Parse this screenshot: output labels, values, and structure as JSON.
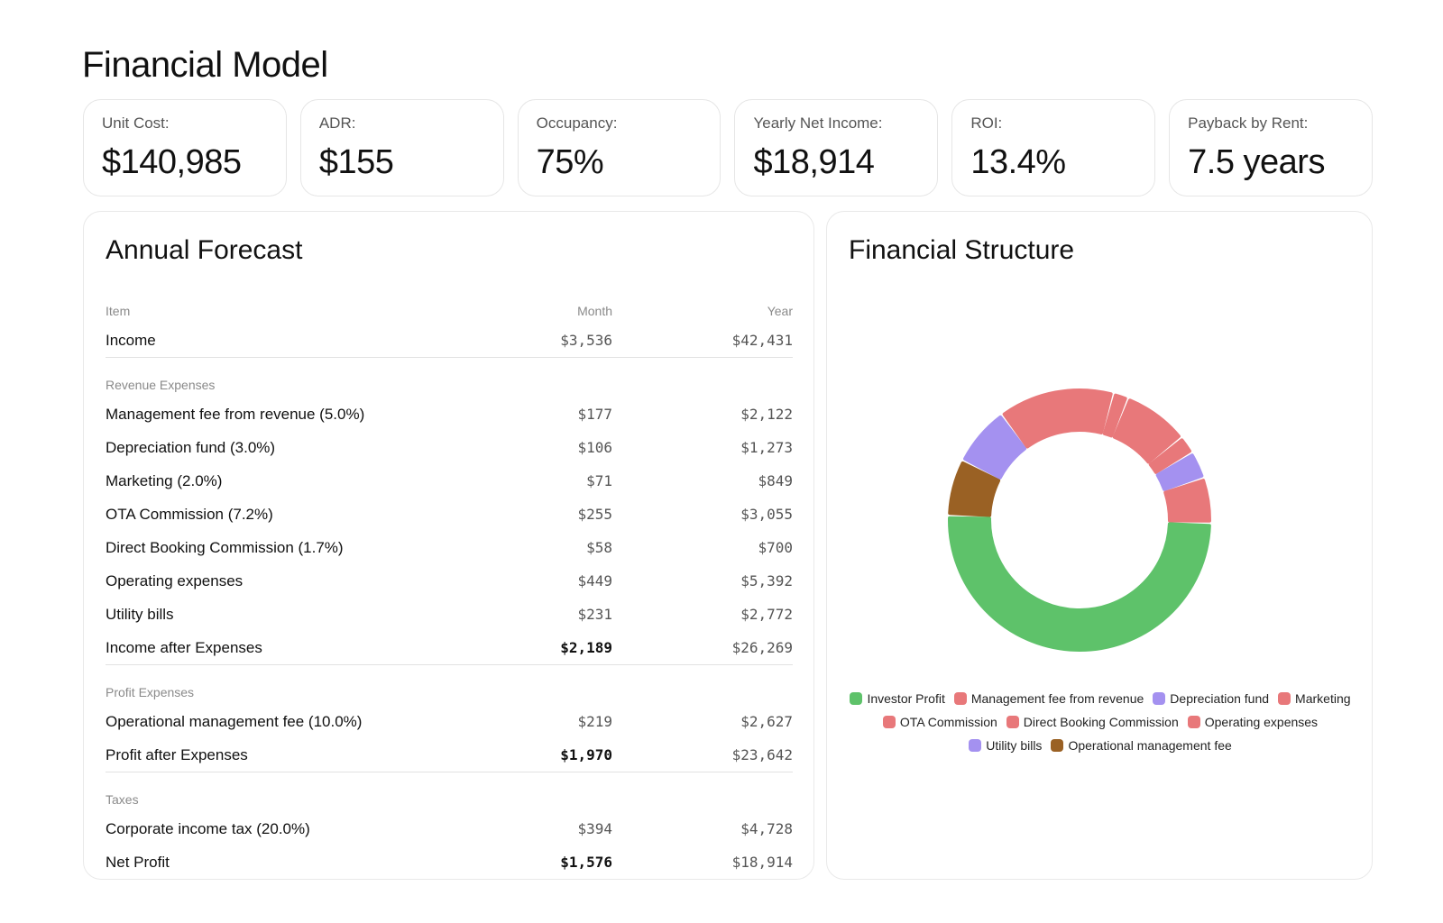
{
  "page_title": "Financial Model",
  "kpis": [
    {
      "label": "Unit Cost:",
      "value": "$140,985"
    },
    {
      "label": "ADR:",
      "value": "$155"
    },
    {
      "label": "Occupancy:",
      "value": "75%"
    },
    {
      "label": "Yearly Net Income:",
      "value": "$18,914"
    },
    {
      "label": "ROI:",
      "value": "13.4%"
    },
    {
      "label": "Payback by Rent:",
      "value": "7.5 years"
    }
  ],
  "forecast": {
    "title": "Annual Forecast",
    "headers": {
      "item": "Item",
      "month": "Month",
      "year": "Year"
    },
    "rows": [
      {
        "kind": "item",
        "label": "Income",
        "month": "$3,536",
        "year": "$42,431",
        "total": true
      },
      {
        "kind": "section",
        "label": "Revenue Expenses"
      },
      {
        "kind": "item",
        "label": "Management fee from revenue (5.0%)",
        "month": "$177",
        "year": "$2,122"
      },
      {
        "kind": "item",
        "label": "Depreciation fund (3.0%)",
        "month": "$106",
        "year": "$1,273"
      },
      {
        "kind": "item",
        "label": "Marketing (2.0%)",
        "month": "$71",
        "year": "$849"
      },
      {
        "kind": "item",
        "label": "OTA Commission (7.2%)",
        "month": "$255",
        "year": "$3,055"
      },
      {
        "kind": "item",
        "label": "Direct Booking Commission (1.7%)",
        "month": "$58",
        "year": "$700"
      },
      {
        "kind": "item",
        "label": "Operating expenses",
        "month": "$449",
        "year": "$5,392"
      },
      {
        "kind": "item",
        "label": "Utility bills",
        "month": "$231",
        "year": "$2,772"
      },
      {
        "kind": "item",
        "label": "Income after Expenses",
        "month": "$2,189",
        "year": "$26,269",
        "total": true,
        "strong": true
      },
      {
        "kind": "section",
        "label": "Profit Expenses"
      },
      {
        "kind": "item",
        "label": "Operational management fee (10.0%)",
        "month": "$219",
        "year": "$2,627"
      },
      {
        "kind": "item",
        "label": "Profit after Expenses",
        "month": "$1,970",
        "year": "$23,642",
        "total": true,
        "strong": true
      },
      {
        "kind": "section",
        "label": "Taxes"
      },
      {
        "kind": "item",
        "label": "Corporate income tax (20.0%)",
        "month": "$394",
        "year": "$4,728"
      },
      {
        "kind": "item",
        "label": "Net Profit",
        "month": "$1,576",
        "year": "$18,914",
        "strong": true
      }
    ]
  },
  "chart_data": {
    "type": "pie",
    "title": "Financial Structure",
    "donut": true,
    "legend_position": "bottom",
    "slices": [
      {
        "label": "Investor Profit",
        "value": 18914,
        "color": "#5ec26a"
      },
      {
        "label": "Operational management fee",
        "value": 2627,
        "color": "#9a6124"
      },
      {
        "label": "Utility bills",
        "value": 2772,
        "color": "#a491f0"
      },
      {
        "label": "Operating expenses",
        "value": 5392,
        "color": "#e8787a"
      },
      {
        "label": "Direct Booking Commission",
        "value": 700,
        "color": "#e8787a"
      },
      {
        "label": "OTA Commission",
        "value": 3055,
        "color": "#e8787a"
      },
      {
        "label": "Marketing",
        "value": 849,
        "color": "#e8787a"
      },
      {
        "label": "Depreciation fund",
        "value": 1273,
        "color": "#a491f0"
      },
      {
        "label": "Management fee from revenue",
        "value": 2122,
        "color": "#e8787a"
      }
    ],
    "legend": [
      {
        "label": "Investor Profit",
        "color": "#5ec26a"
      },
      {
        "label": "Management fee from revenue",
        "color": "#e8787a"
      },
      {
        "label": "Depreciation fund",
        "color": "#a491f0"
      },
      {
        "label": "Marketing",
        "color": "#e8787a"
      },
      {
        "label": "OTA Commission",
        "color": "#e8787a"
      },
      {
        "label": "Direct Booking Commission",
        "color": "#e8787a"
      },
      {
        "label": "Operating expenses",
        "color": "#e8787a"
      },
      {
        "label": "Utility bills",
        "color": "#a491f0"
      },
      {
        "label": "Operational management fee",
        "color": "#9a6124"
      }
    ]
  }
}
